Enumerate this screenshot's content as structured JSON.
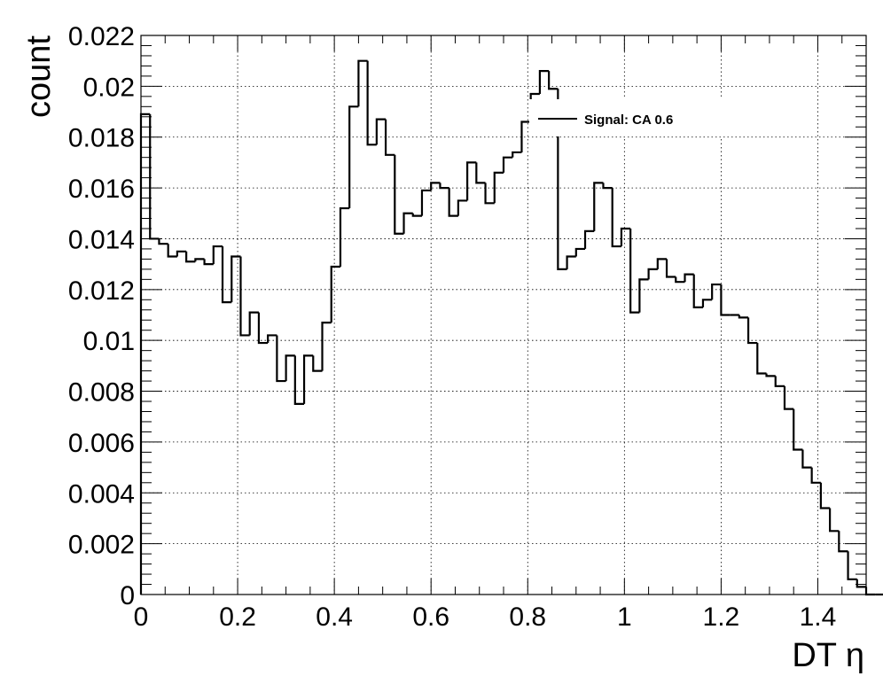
{
  "chart_data": {
    "type": "line",
    "style": "step-histogram",
    "title": "",
    "xlabel": "DT η",
    "ylabel": "count",
    "xlim": [
      0,
      1.5
    ],
    "ylim": [
      0,
      0.022
    ],
    "grid": true,
    "legend_position": "top-right",
    "bin_width": 0.01875,
    "x_ticks": [
      0,
      0.2,
      0.4,
      0.6,
      0.8,
      1,
      1.2,
      1.4
    ],
    "x_tick_labels": [
      "0",
      "0.2",
      "0.4",
      "0.6",
      "0.8",
      "1",
      "1.2",
      "1.4"
    ],
    "y_ticks": [
      0,
      0.002,
      0.004,
      0.006,
      0.008,
      0.01,
      0.012,
      0.014,
      0.016,
      0.018,
      0.02,
      0.022
    ],
    "y_tick_labels": [
      "0",
      "0.002",
      "0.004",
      "0.006",
      "0.008",
      "0.01",
      "0.012",
      "0.014",
      "0.016",
      "0.018",
      "0.02",
      "0.022"
    ],
    "series": [
      {
        "name": "Signal: CA 0.6",
        "color": "#000000",
        "values": [
          0.0189,
          0.014,
          0.0138,
          0.0133,
          0.0135,
          0.0131,
          0.0132,
          0.013,
          0.0137,
          0.0115,
          0.0133,
          0.0102,
          0.0111,
          0.0099,
          0.0102,
          0.0084,
          0.0094,
          0.0075,
          0.0094,
          0.0088,
          0.0107,
          0.0129,
          0.0152,
          0.0192,
          0.021,
          0.0177,
          0.0187,
          0.0173,
          0.0142,
          0.015,
          0.0149,
          0.0159,
          0.0162,
          0.016,
          0.0149,
          0.0155,
          0.017,
          0.0162,
          0.0154,
          0.0166,
          0.0172,
          0.0174,
          0.0186,
          0.0197,
          0.0206,
          0.0199,
          0.0128,
          0.0133,
          0.0136,
          0.0143,
          0.0162,
          0.016,
          0.0137,
          0.0144,
          0.0111,
          0.0124,
          0.0128,
          0.0132,
          0.0125,
          0.0123,
          0.0126,
          0.0113,
          0.0116,
          0.0122,
          0.011,
          0.011,
          0.0109,
          0.0099,
          0.0087,
          0.0086,
          0.0082,
          0.0073,
          0.0057,
          0.005,
          0.0044,
          0.0034,
          0.0025,
          0.0017,
          0.0006,
          0.0003,
          0.0,
          0.0,
          0.0,
          0.0,
          0.0,
          0.0,
          0.0,
          0.0,
          0.0,
          0.0,
          0.0,
          0.0,
          0.0,
          0.0,
          0.0,
          0.0,
          0.0,
          0.0,
          0.0,
          0.0
        ]
      }
    ]
  }
}
